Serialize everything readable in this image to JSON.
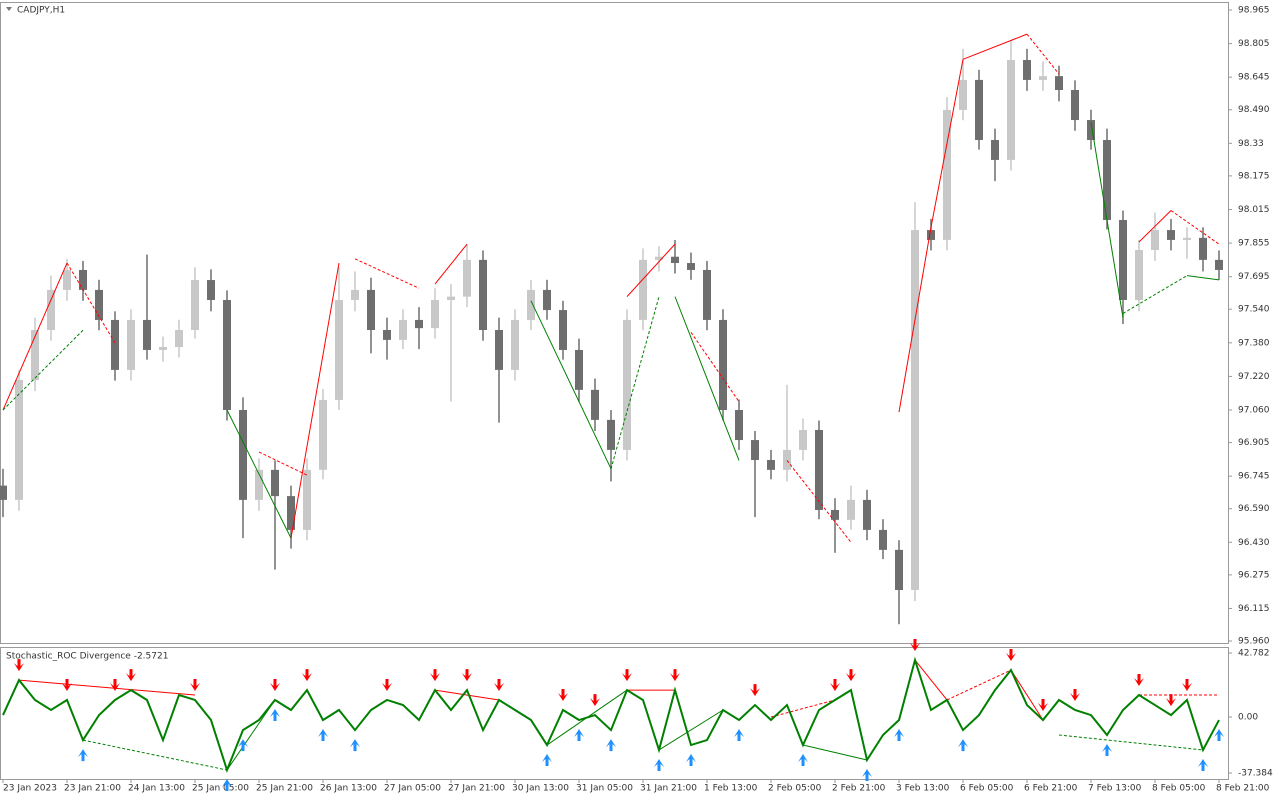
{
  "chart_data": [
    {
      "type": "candlestick",
      "title": "CADJPY,H1",
      "categories": [
        "23 Jan 2023",
        null,
        null,
        null,
        "23 Jan 21:00",
        null,
        null,
        null,
        "24 Jan 13:00",
        null,
        null,
        null,
        "25 Jan 05:00",
        null,
        null,
        null,
        "25 Jan 21:00",
        null,
        null,
        null,
        "26 Jan 13:00",
        null,
        null,
        null,
        "27 Jan 05:00",
        null,
        null,
        null,
        "27 Jan 21:00",
        null,
        null,
        null,
        "30 Jan 13:00",
        null,
        null,
        null,
        "31 Jan 05:00",
        null,
        null,
        null,
        "31 Jan 21:00",
        null,
        null,
        null,
        "1 Feb 13:00",
        null,
        null,
        null,
        "2 Feb 05:00",
        null,
        null,
        null,
        "2 Feb 21:00",
        null,
        null,
        null,
        "3 Feb 13:00",
        null,
        null,
        null,
        "6 Feb 05:00",
        null,
        null,
        null,
        "6 Feb 21:00",
        null,
        null,
        null,
        "7 Feb 13:00",
        null,
        null,
        null,
        "8 Feb 05:00",
        null,
        null,
        null,
        "8 Feb 21:00"
      ],
      "values": [
        [
          96.7,
          96.78,
          96.55,
          96.632
        ],
        [
          96.632,
          97.25,
          96.58,
          97.203
        ],
        [
          97.203,
          97.5,
          97.15,
          97.441
        ],
        [
          97.441,
          97.7,
          97.39,
          97.632
        ],
        [
          97.632,
          97.78,
          97.58,
          97.727
        ],
        [
          97.727,
          97.77,
          97.58,
          97.632
        ],
        [
          97.632,
          97.68,
          97.44,
          97.489
        ],
        [
          97.489,
          97.53,
          97.2,
          97.251
        ],
        [
          97.251,
          97.54,
          97.2,
          97.489
        ],
        [
          97.489,
          97.8,
          97.3,
          97.346
        ],
        [
          97.346,
          97.41,
          97.29,
          97.36
        ],
        [
          97.36,
          97.49,
          97.31,
          97.441
        ],
        [
          97.441,
          97.74,
          97.4,
          97.679
        ],
        [
          97.679,
          97.73,
          97.53,
          97.584
        ],
        [
          97.584,
          97.63,
          97.01,
          97.06
        ],
        [
          97.06,
          97.12,
          96.45,
          96.632
        ],
        [
          96.632,
          96.83,
          96.58,
          96.775
        ],
        [
          96.775,
          96.82,
          96.3,
          96.65
        ],
        [
          96.65,
          96.7,
          96.4,
          96.489
        ],
        [
          96.489,
          96.83,
          96.44,
          96.775
        ],
        [
          96.775,
          97.16,
          96.73,
          97.108
        ],
        [
          97.108,
          97.74,
          97.06,
          97.584
        ],
        [
          97.584,
          97.72,
          97.53,
          97.632
        ],
        [
          97.632,
          97.69,
          97.33,
          97.441
        ],
        [
          97.441,
          97.5,
          97.3,
          97.394
        ],
        [
          97.394,
          97.54,
          97.35,
          97.489
        ],
        [
          97.489,
          97.55,
          97.35,
          97.45
        ],
        [
          97.45,
          97.64,
          97.4,
          97.584
        ],
        [
          97.584,
          97.66,
          97.1,
          97.6
        ],
        [
          97.6,
          97.85,
          97.55,
          97.775
        ],
        [
          97.775,
          97.82,
          97.39,
          97.441
        ],
        [
          97.441,
          97.5,
          97.0,
          97.251
        ],
        [
          97.251,
          97.54,
          97.2,
          97.489
        ],
        [
          97.489,
          97.68,
          97.44,
          97.632
        ],
        [
          97.632,
          97.68,
          97.49,
          97.536
        ],
        [
          97.536,
          97.58,
          97.3,
          97.346
        ],
        [
          97.346,
          97.4,
          97.1,
          97.156
        ],
        [
          97.156,
          97.21,
          96.96,
          97.013
        ],
        [
          97.013,
          97.06,
          96.72,
          96.87
        ],
        [
          96.87,
          97.54,
          96.82,
          97.489
        ],
        [
          97.489,
          97.83,
          97.44,
          97.775
        ],
        [
          97.775,
          97.84,
          97.72,
          97.79
        ],
        [
          97.79,
          97.87,
          97.71,
          97.76
        ],
        [
          97.76,
          97.81,
          97.68,
          97.727
        ],
        [
          97.727,
          97.77,
          97.44,
          97.489
        ],
        [
          97.489,
          97.54,
          97.01,
          97.06
        ],
        [
          97.06,
          97.11,
          96.87,
          96.917
        ],
        [
          96.917,
          96.96,
          96.55,
          96.822
        ],
        [
          96.822,
          96.87,
          96.73,
          96.775
        ],
        [
          96.775,
          97.18,
          96.72,
          96.87
        ],
        [
          96.87,
          97.02,
          96.82,
          96.965
        ],
        [
          96.965,
          97.01,
          96.54,
          96.584
        ],
        [
          96.584,
          96.64,
          96.38,
          96.537
        ],
        [
          96.537,
          96.7,
          96.49,
          96.632
        ],
        [
          96.632,
          96.68,
          96.44,
          96.489
        ],
        [
          96.489,
          96.54,
          96.35,
          96.394
        ],
        [
          96.394,
          96.44,
          96.04,
          96.203
        ],
        [
          96.203,
          98.05,
          96.15,
          97.917
        ],
        [
          97.917,
          97.97,
          97.82,
          97.87
        ],
        [
          97.87,
          98.55,
          97.82,
          98.489
        ],
        [
          98.489,
          98.78,
          98.44,
          98.632
        ],
        [
          98.632,
          98.68,
          98.3,
          98.346
        ],
        [
          98.346,
          98.4,
          98.15,
          98.251
        ],
        [
          98.251,
          98.82,
          98.2,
          98.727
        ],
        [
          98.727,
          98.78,
          98.58,
          98.632
        ],
        [
          98.632,
          98.72,
          98.58,
          98.65
        ],
        [
          98.65,
          98.7,
          98.53,
          98.584
        ],
        [
          98.584,
          98.63,
          98.39,
          98.441
        ],
        [
          98.441,
          98.49,
          98.3,
          98.346
        ],
        [
          98.346,
          98.4,
          97.92,
          97.965
        ],
        [
          97.965,
          98.01,
          97.47,
          97.584
        ],
        [
          97.584,
          97.87,
          97.53,
          97.822
        ],
        [
          97.822,
          98.0,
          97.77,
          97.917
        ],
        [
          97.917,
          97.97,
          97.82,
          97.87
        ],
        [
          97.87,
          97.93,
          97.78,
          97.88
        ],
        [
          97.88,
          97.93,
          97.72,
          97.775
        ],
        [
          97.775,
          97.82,
          97.68,
          97.727
        ]
      ],
      "up_color": "#c8c8c8",
      "down_color": "#6e6e6e",
      "ylim": [
        95.96,
        98.965
      ],
      "yticks": [
        98.965,
        98.805,
        98.645,
        {
          "value": 98.49,
          "label": "98.490"
        },
        98.33,
        98.175,
        98.015,
        97.855,
        97.695,
        {
          "value": 97.54,
          "label": "97.540"
        },
        {
          "value": 97.38,
          "label": "97.380"
        },
        {
          "value": 97.22,
          "label": "97.220"
        },
        {
          "value": 97.06,
          "label": "97.060"
        },
        96.905,
        96.745,
        {
          "value": 96.59,
          "label": "96.590"
        },
        {
          "value": 96.43,
          "label": "96.430"
        },
        96.275,
        96.115,
        {
          "value": 95.96,
          "label": "95.960"
        }
      ],
      "lines": [
        {
          "from": [
            0,
            97.06
          ],
          "to": [
            4,
            97.76
          ],
          "color": "#ff0000",
          "dash": false
        },
        {
          "from": [
            4,
            97.76
          ],
          "to": [
            7,
            97.38
          ],
          "color": "#ff0000",
          "dash": true
        },
        {
          "from": [
            0,
            97.06
          ],
          "to": [
            5,
            97.44
          ],
          "color": "#008000",
          "dash": true
        },
        {
          "from": [
            14,
            97.06
          ],
          "to": [
            18,
            96.45
          ],
          "color": "#008000",
          "dash": false
        },
        {
          "from": [
            16,
            96.86
          ],
          "to": [
            19,
            96.75
          ],
          "color": "#ff0000",
          "dash": true
        },
        {
          "from": [
            18,
            96.45
          ],
          "to": [
            21,
            97.76
          ],
          "color": "#ff0000",
          "dash": false
        },
        {
          "from": [
            22,
            97.78
          ],
          "to": [
            26,
            97.64
          ],
          "color": "#ff0000",
          "dash": true
        },
        {
          "from": [
            27,
            97.66
          ],
          "to": [
            29,
            97.85
          ],
          "color": "#ff0000",
          "dash": false
        },
        {
          "from": [
            33,
            97.58
          ],
          "to": [
            38,
            96.78
          ],
          "color": "#008000",
          "dash": false
        },
        {
          "from": [
            39,
            97.6
          ],
          "to": [
            42,
            97.85
          ],
          "color": "#ff0000",
          "dash": false
        },
        {
          "from": [
            38,
            96.78
          ],
          "to": [
            41,
            97.6
          ],
          "color": "#008000",
          "dash": true
        },
        {
          "from": [
            42,
            97.6
          ],
          "to": [
            46,
            96.82
          ],
          "color": "#008000",
          "dash": false
        },
        {
          "from": [
            43,
            97.43
          ],
          "to": [
            46,
            97.1
          ],
          "color": "#ff0000",
          "dash": true
        },
        {
          "from": [
            49,
            96.82
          ],
          "to": [
            53,
            96.43
          ],
          "color": "#ff0000",
          "dash": true
        },
        {
          "from": [
            56,
            97.05
          ],
          "to": [
            58,
            97.93
          ],
          "color": "#ff0000",
          "dash": false
        },
        {
          "from": [
            58,
            97.93
          ],
          "to": [
            60,
            98.73
          ],
          "color": "#ff0000",
          "dash": false
        },
        {
          "from": [
            60,
            98.73
          ],
          "to": [
            64,
            98.85
          ],
          "color": "#ff0000",
          "dash": false
        },
        {
          "from": [
            64,
            98.85
          ],
          "to": [
            66,
            98.66
          ],
          "color": "#ff0000",
          "dash": true
        },
        {
          "from": [
            68,
            98.43
          ],
          "to": [
            70,
            97.5
          ],
          "color": "#008000",
          "dash": false
        },
        {
          "from": [
            71,
            97.86
          ],
          "to": [
            73,
            98.01
          ],
          "color": "#ff0000",
          "dash": false
        },
        {
          "from": [
            73,
            98.01
          ],
          "to": [
            76,
            97.85
          ],
          "color": "#ff0000",
          "dash": true
        },
        {
          "from": [
            70,
            97.52
          ],
          "to": [
            74,
            97.7
          ],
          "color": "#008000",
          "dash": true
        },
        {
          "from": [
            74,
            97.7
          ],
          "to": [
            76,
            97.68
          ],
          "color": "#008000",
          "dash": false
        }
      ]
    },
    {
      "type": "line",
      "title": "Stochastic_ROC Divergence -2.5721",
      "values": [
        1.3,
        24.7,
        11.4,
        4.7,
        11.4,
        -15.4,
        1.3,
        11.4,
        18,
        11.4,
        -15.4,
        14.7,
        11.4,
        -2,
        -35.4,
        -8.7,
        -2,
        11.4,
        4.7,
        18,
        -2,
        4.7,
        -8.7,
        4.7,
        11.4,
        8,
        -2,
        18,
        4.7,
        18,
        -8.7,
        11.4,
        4.7,
        -2,
        -18.7,
        4.7,
        -2,
        1.3,
        -8.7,
        18,
        11.4,
        -22,
        18,
        -18.7,
        -15.4,
        4.7,
        -2,
        8,
        -2,
        8,
        -18.7,
        4.7,
        11.4,
        18,
        -28.7,
        -12,
        -2,
        38.1,
        4.7,
        11.4,
        -8.7,
        1.3,
        18,
        31.4,
        8,
        -2,
        11.4,
        4.7,
        1.3,
        -12,
        4.7,
        14.7,
        8,
        1.3,
        11.4,
        -22,
        -2
      ],
      "color": "#008000",
      "ylim": [
        -37.384,
        42.782
      ],
      "yticks": [
        42.782,
        {
          "value": 0,
          "label": "0.00"
        },
        -37.384
      ],
      "sell_signals": [
        1,
        4,
        7,
        8,
        12,
        17,
        19,
        24,
        27,
        29,
        31,
        35,
        37,
        39,
        42,
        47,
        52,
        53,
        57,
        63,
        65,
        67,
        71,
        73,
        74
      ],
      "buy_signals": [
        5,
        14,
        15,
        17,
        20,
        22,
        34,
        36,
        38,
        41,
        43,
        46,
        50,
        54,
        56,
        60,
        69,
        75,
        76
      ],
      "sell_color": "#ff0000",
      "buy_color": "#1e90ff",
      "lines": [
        {
          "from": [
            1,
            24.7
          ],
          "to": [
            12,
            14.7
          ],
          "color": "#ff0000",
          "dash": false
        },
        {
          "from": [
            5,
            -15.4
          ],
          "to": [
            14,
            -35.4
          ],
          "color": "#008000",
          "dash": true
        },
        {
          "from": [
            14,
            -35.4
          ],
          "to": [
            17,
            11.4
          ],
          "color": "#008000",
          "dash": false
        },
        {
          "from": [
            27,
            18
          ],
          "to": [
            31,
            11.4
          ],
          "color": "#ff0000",
          "dash": false
        },
        {
          "from": [
            34,
            -18.7
          ],
          "to": [
            39,
            18
          ],
          "color": "#008000",
          "dash": false
        },
        {
          "from": [
            39,
            18
          ],
          "to": [
            42,
            18
          ],
          "color": "#ff0000",
          "dash": false
        },
        {
          "from": [
            41,
            -22
          ],
          "to": [
            45,
            4.7
          ],
          "color": "#008000",
          "dash": false
        },
        {
          "from": [
            50,
            -18.7
          ],
          "to": [
            54,
            -28.7
          ],
          "color": "#008000",
          "dash": false
        },
        {
          "from": [
            48,
            0
          ],
          "to": [
            52,
            11.4
          ],
          "color": "#ff0000",
          "dash": true
        },
        {
          "from": [
            57,
            38.1
          ],
          "to": [
            59,
            11.4
          ],
          "color": "#ff0000",
          "dash": false
        },
        {
          "from": [
            59,
            11.4
          ],
          "to": [
            63,
            31.4
          ],
          "color": "#ff0000",
          "dash": true
        },
        {
          "from": [
            63,
            31.4
          ],
          "to": [
            65,
            -2
          ],
          "color": "#ff0000",
          "dash": false
        },
        {
          "from": [
            66,
            -12
          ],
          "to": [
            75,
            -22
          ],
          "color": "#008000",
          "dash": true
        },
        {
          "from": [
            71,
            14.7
          ],
          "to": [
            76,
            14.7
          ],
          "color": "#ff0000",
          "dash": true
        }
      ]
    }
  ]
}
